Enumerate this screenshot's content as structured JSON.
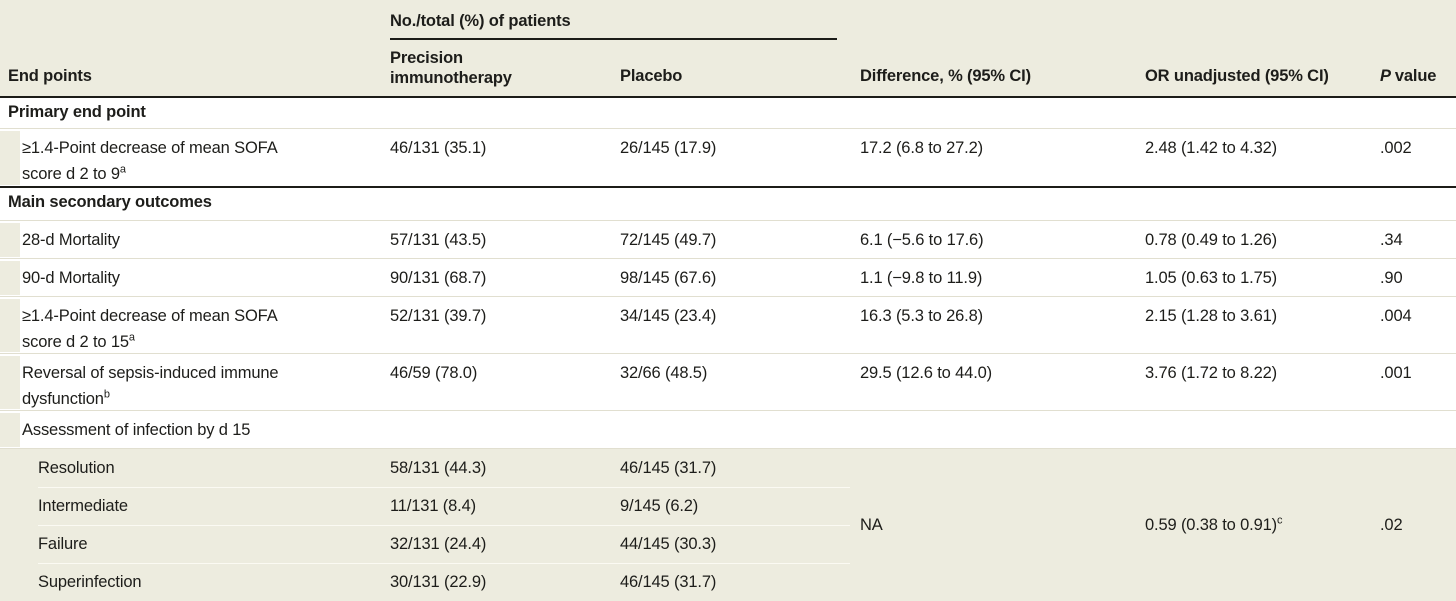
{
  "colors": {
    "shading_beige": "#edecdf",
    "rule_black": "#1c1c18",
    "separator_beige": "#e1dfd0",
    "subrow_separator_white": "#fbfaf3",
    "text": "#1d1d1a"
  },
  "header": {
    "spanner": "No./total (%) of patients",
    "endpoints": "End points",
    "precision": "Precision immunotherapy",
    "placebo": "Placebo",
    "difference": "Difference, % (95% CI)",
    "or": "OR unadjusted (95% CI)",
    "p_italic": "P",
    "p_rest": "value"
  },
  "sections": {
    "primary_title": "Primary end point",
    "secondary_title": "Main secondary outcomes"
  },
  "rows": {
    "sofa9": {
      "label": "≥1.4-Point decrease of mean SOFA score d 2 to 9",
      "sup": "a",
      "precision": "46/131 (35.1)",
      "placebo": "26/145 (17.9)",
      "difference": "17.2 (6.8 to 27.2)",
      "or": "2.48 (1.42 to 4.32)",
      "p": ".002"
    },
    "mortality28": {
      "label": "28-d Mortality",
      "precision": "57/131 (43.5)",
      "placebo": "72/145 (49.7)",
      "difference": "6.1 (−5.6 to 17.6)",
      "or": "0.78 (0.49 to 1.26)",
      "p": ".34"
    },
    "mortality90": {
      "label": "90-d Mortality",
      "precision": "90/131 (68.7)",
      "placebo": "98/145 (67.6)",
      "difference": "1.1 (−9.8 to 11.9)",
      "or": "1.05 (0.63 to 1.75)",
      "p": ".90"
    },
    "sofa15": {
      "label": "≥1.4-Point decrease of mean SOFA score d 2 to 15",
      "sup": "a",
      "precision": "52/131 (39.7)",
      "placebo": "34/145 (23.4)",
      "difference": "16.3 (5.3 to 26.8)",
      "or": "2.15 (1.28 to 3.61)",
      "p": ".004"
    },
    "reversal": {
      "label": "Reversal of sepsis-induced immune dysfunction",
      "sup": "b",
      "precision": "46/59 (78.0)",
      "placebo": "32/66 (48.5)",
      "difference": "29.5 (12.6 to 44.0)",
      "or": "3.76 (1.72 to 8.22)",
      "p": ".001"
    },
    "assessment": {
      "label": "Assessment of infection by d 15"
    },
    "resolution": {
      "label": "Resolution",
      "precision": "58/131 (44.3)",
      "placebo": "46/145 (31.7)"
    },
    "intermediate": {
      "label": "Intermediate",
      "precision": "11/131 (8.4)",
      "placebo": "9/145 (6.2)"
    },
    "failure": {
      "label": "Failure",
      "precision": "32/131 (24.4)",
      "placebo": "44/145 (30.3)"
    },
    "superinfection": {
      "label": "Superinfection",
      "precision": "30/131 (22.9)",
      "placebo": "46/145 (31.7)"
    },
    "merged": {
      "difference": "NA",
      "or": "0.59 (0.38 to 0.91)",
      "or_sup": "c",
      "p": ".02"
    }
  }
}
